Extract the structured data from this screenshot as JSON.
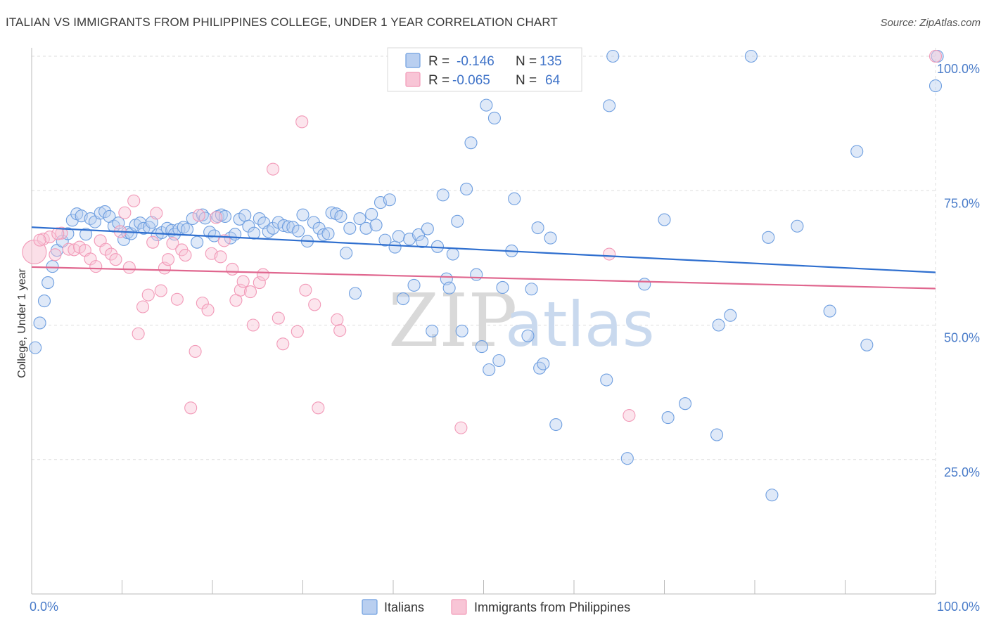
{
  "chart_data": {
    "type": "scatter",
    "title": "ITALIAN VS IMMIGRANTS FROM PHILIPPINES COLLEGE, UNDER 1 YEAR CORRELATION CHART",
    "source": "Source: ZipAtlas.com",
    "ylabel": "College, Under 1 year",
    "xlim": [
      0,
      100
    ],
    "ylim": [
      0,
      100
    ],
    "x_tick_labels": [
      "0.0%",
      "100.0%"
    ],
    "y_ticks": [
      25,
      50,
      75,
      100
    ],
    "y_tick_labels": [
      "25.0%",
      "50.0%",
      "75.0%",
      "100.0%"
    ],
    "grid": true,
    "legend": {
      "placement": "top-center",
      "entries": [
        {
          "r_label": "R =",
          "r_value": "-0.146",
          "n_label": "N =",
          "n_value": "135"
        },
        {
          "r_label": "R =",
          "r_value": "-0.065",
          "n_label": "N =",
          "n_value": "64"
        }
      ]
    },
    "series": [
      {
        "name": "Italians",
        "color": "#6f9fe0",
        "fill": "#b9cff0",
        "trend": {
          "x": [
            0,
            100
          ],
          "y": [
            68.2,
            59.8
          ],
          "color": "#2f6fcf"
        },
        "points": [
          [
            0.4,
            45.8
          ],
          [
            0.9,
            50.4
          ],
          [
            1.4,
            54.5
          ],
          [
            1.8,
            57.9
          ],
          [
            2.3,
            60.9
          ],
          [
            2.8,
            63.9
          ],
          [
            3.4,
            65.6
          ],
          [
            4.0,
            67.0
          ],
          [
            4.5,
            69.5
          ],
          [
            5.0,
            70.7
          ],
          [
            5.5,
            70.3
          ],
          [
            6.0,
            66.9
          ],
          [
            6.5,
            69.8
          ],
          [
            7.0,
            69.2
          ],
          [
            7.6,
            70.8
          ],
          [
            8.1,
            71.1
          ],
          [
            8.6,
            70.2
          ],
          [
            9.1,
            68.4
          ],
          [
            9.6,
            69.0
          ],
          [
            10.2,
            65.9
          ],
          [
            10.6,
            67.2
          ],
          [
            11.0,
            67.0
          ],
          [
            11.5,
            68.6
          ],
          [
            12.0,
            69.0
          ],
          [
            12.4,
            68.0
          ],
          [
            13.0,
            68.2
          ],
          [
            13.3,
            69.1
          ],
          [
            13.9,
            66.8
          ],
          [
            14.4,
            67.2
          ],
          [
            15.0,
            68.0
          ],
          [
            15.5,
            67.6
          ],
          [
            15.8,
            66.9
          ],
          [
            16.3,
            67.8
          ],
          [
            16.8,
            68.2
          ],
          [
            17.2,
            67.8
          ],
          [
            17.8,
            69.8
          ],
          [
            18.3,
            65.4
          ],
          [
            18.9,
            70.5
          ],
          [
            19.2,
            69.9
          ],
          [
            19.7,
            67.3
          ],
          [
            20.2,
            66.6
          ],
          [
            20.6,
            70.2
          ],
          [
            21.0,
            70.5
          ],
          [
            21.4,
            70.2
          ],
          [
            22.0,
            66.2
          ],
          [
            22.5,
            66.9
          ],
          [
            23.0,
            69.7
          ],
          [
            23.6,
            70.4
          ],
          [
            24.0,
            68.4
          ],
          [
            24.6,
            67.1
          ],
          [
            25.2,
            69.8
          ],
          [
            25.7,
            69.0
          ],
          [
            26.2,
            67.4
          ],
          [
            26.7,
            68.0
          ],
          [
            27.3,
            69.1
          ],
          [
            27.9,
            68.5
          ],
          [
            28.4,
            68.3
          ],
          [
            28.9,
            68.2
          ],
          [
            29.5,
            67.5
          ],
          [
            30.0,
            70.5
          ],
          [
            30.5,
            65.6
          ],
          [
            31.2,
            69.1
          ],
          [
            31.8,
            68.0
          ],
          [
            32.3,
            66.8
          ],
          [
            32.8,
            67.0
          ],
          [
            33.2,
            70.9
          ],
          [
            33.7,
            70.7
          ],
          [
            34.2,
            70.2
          ],
          [
            34.8,
            63.4
          ],
          [
            35.2,
            68.0
          ],
          [
            35.8,
            55.9
          ],
          [
            36.3,
            69.8
          ],
          [
            37.0,
            68.0
          ],
          [
            37.6,
            70.6
          ],
          [
            38.1,
            68.6
          ],
          [
            38.6,
            72.8
          ],
          [
            39.1,
            65.8
          ],
          [
            39.6,
            73.3
          ],
          [
            40.2,
            64.5
          ],
          [
            40.6,
            66.5
          ],
          [
            41.1,
            54.9
          ],
          [
            41.8,
            66.0
          ],
          [
            42.3,
            57.4
          ],
          [
            42.8,
            66.8
          ],
          [
            43.2,
            65.5
          ],
          [
            43.8,
            67.9
          ],
          [
            44.3,
            48.9
          ],
          [
            44.9,
            64.6
          ],
          [
            45.5,
            74.2
          ],
          [
            45.9,
            58.6
          ],
          [
            46.2,
            56.9
          ],
          [
            46.6,
            63.2
          ],
          [
            47.1,
            69.3
          ],
          [
            47.6,
            48.9
          ],
          [
            48.1,
            75.3
          ],
          [
            48.6,
            83.9
          ],
          [
            49.2,
            59.4
          ],
          [
            49.8,
            46.0
          ],
          [
            50.3,
            90.9
          ],
          [
            50.6,
            41.7
          ],
          [
            51.2,
            88.5
          ],
          [
            51.7,
            43.4
          ],
          [
            52.1,
            57.0
          ],
          [
            53.1,
            63.8
          ],
          [
            53.4,
            73.5
          ],
          [
            54.0,
            100.0
          ],
          [
            54.5,
            97.0
          ],
          [
            54.9,
            48.0
          ],
          [
            55.3,
            56.7
          ],
          [
            56.0,
            68.1
          ],
          [
            56.2,
            42.0
          ],
          [
            56.6,
            42.8
          ],
          [
            57.4,
            66.2
          ],
          [
            58.0,
            31.5
          ],
          [
            60.0,
            100.0
          ],
          [
            63.6,
            39.8
          ],
          [
            63.9,
            90.8
          ],
          [
            64.3,
            100.0
          ],
          [
            65.9,
            25.2
          ],
          [
            67.8,
            57.6
          ],
          [
            70.0,
            69.6
          ],
          [
            70.4,
            32.8
          ],
          [
            72.3,
            35.4
          ],
          [
            75.8,
            29.6
          ],
          [
            76.0,
            50.0
          ],
          [
            77.3,
            51.8
          ],
          [
            79.6,
            100.0
          ],
          [
            81.5,
            66.3
          ],
          [
            81.9,
            18.4
          ],
          [
            84.7,
            68.4
          ],
          [
            88.3,
            52.6
          ],
          [
            91.3,
            82.3
          ],
          [
            92.4,
            46.3
          ],
          [
            100.0,
            94.5
          ],
          [
            100.2,
            100.0
          ]
        ]
      },
      {
        "name": "Immigrants from Philippines",
        "color": "#f29ab8",
        "fill": "#f8c5d6",
        "trend": {
          "x": [
            0,
            100
          ],
          "y": [
            60.8,
            56.8
          ],
          "color": "#e0678f"
        },
        "points": [
          [
            0.3,
            63.6
          ],
          [
            1.3,
            66.0
          ],
          [
            2.0,
            66.4
          ],
          [
            2.6,
            63.1
          ],
          [
            3.3,
            67.1
          ],
          [
            4.1,
            64.1
          ],
          [
            4.7,
            64.0
          ],
          [
            5.3,
            64.5
          ],
          [
            5.9,
            63.9
          ],
          [
            6.5,
            62.3
          ],
          [
            7.1,
            60.9
          ],
          [
            7.6,
            65.7
          ],
          [
            8.2,
            64.1
          ],
          [
            8.8,
            63.2
          ],
          [
            9.3,
            62.2
          ],
          [
            9.8,
            67.4
          ],
          [
            10.3,
            70.9
          ],
          [
            10.8,
            60.7
          ],
          [
            11.3,
            73.1
          ],
          [
            11.8,
            48.4
          ],
          [
            12.3,
            53.4
          ],
          [
            12.9,
            55.6
          ],
          [
            13.4,
            65.4
          ],
          [
            13.8,
            70.8
          ],
          [
            14.3,
            56.4
          ],
          [
            14.7,
            60.6
          ],
          [
            15.1,
            62.2
          ],
          [
            15.6,
            65.2
          ],
          [
            16.1,
            54.8
          ],
          [
            16.6,
            64.0
          ],
          [
            17.0,
            63.0
          ],
          [
            17.6,
            34.6
          ],
          [
            18.1,
            45.1
          ],
          [
            18.5,
            70.4
          ],
          [
            18.9,
            54.1
          ],
          [
            19.5,
            52.8
          ],
          [
            19.9,
            63.3
          ],
          [
            20.4,
            70.0
          ],
          [
            20.9,
            62.7
          ],
          [
            21.3,
            65.7
          ],
          [
            22.2,
            60.4
          ],
          [
            22.6,
            54.6
          ],
          [
            23.1,
            56.5
          ],
          [
            23.4,
            58.1
          ],
          [
            24.2,
            56.2
          ],
          [
            24.5,
            50.0
          ],
          [
            25.2,
            57.9
          ],
          [
            25.6,
            59.4
          ],
          [
            26.7,
            79.0
          ],
          [
            27.3,
            51.3
          ],
          [
            27.8,
            46.5
          ],
          [
            29.4,
            48.8
          ],
          [
            29.9,
            87.8
          ],
          [
            30.3,
            56.5
          ],
          [
            31.3,
            53.8
          ],
          [
            31.7,
            34.6
          ],
          [
            33.8,
            51.0
          ],
          [
            34.1,
            49.0
          ],
          [
            47.5,
            30.9
          ],
          [
            63.9,
            63.2
          ],
          [
            66.1,
            33.2
          ],
          [
            100.0,
            100.0
          ],
          [
            0.9,
            65.8
          ],
          [
            2.9,
            67.0
          ]
        ]
      }
    ]
  },
  "watermark": {
    "zip": "ZIP",
    "atlas": "atlas"
  }
}
